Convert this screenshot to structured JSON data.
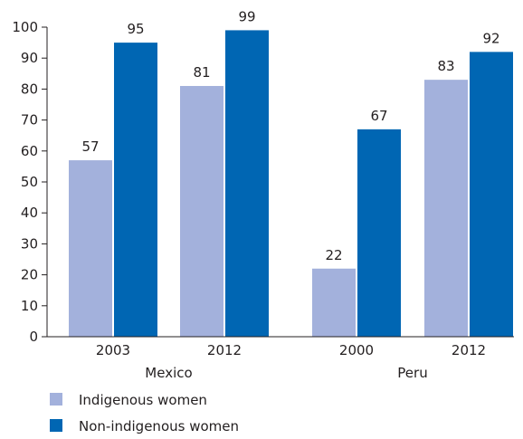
{
  "chart_data": {
    "type": "bar",
    "title": "",
    "xlabel": "",
    "ylabel": "",
    "ylim": [
      0,
      100
    ],
    "yticks": [
      "0",
      "10",
      "20",
      "30",
      "40",
      "50",
      "60",
      "70",
      "80",
      "90",
      "100"
    ],
    "groups": [
      {
        "name": "Mexico",
        "categories": [
          "2003",
          "2012"
        ]
      },
      {
        "name": "Peru",
        "categories": [
          "2000",
          "2012"
        ]
      }
    ],
    "categories": [
      "2003",
      "2012",
      "2000",
      "2012"
    ],
    "series": [
      {
        "name": "Indigenous women",
        "color": "#a3b1dc",
        "values": [
          57,
          81,
          22,
          83
        ]
      },
      {
        "name": "Non-indigenous women",
        "color": "#0066b3",
        "values": [
          95,
          99,
          67,
          92
        ]
      }
    ],
    "grid": false,
    "legend_position": "bottom-left"
  }
}
